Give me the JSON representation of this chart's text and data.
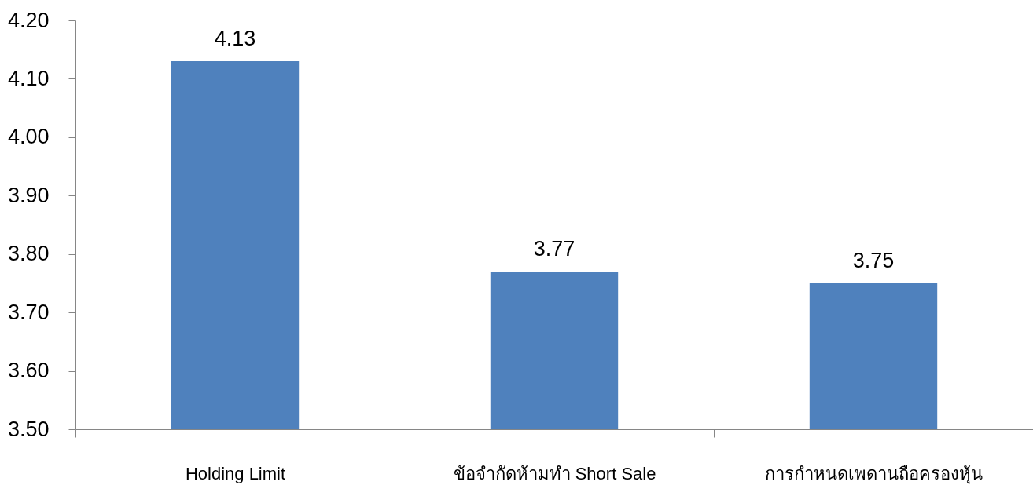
{
  "chart_data": {
    "type": "bar",
    "categories": [
      "Holding Limit",
      "ข้อจำกัดห้ามทำ Short Sale",
      "การกำหนดเพดานถือครองหุ้น"
    ],
    "values": [
      4.13,
      3.77,
      3.75
    ],
    "color": "#4f81bd",
    "ylim": [
      3.5,
      4.2
    ],
    "yticks": [
      {
        "value": 3.5,
        "label": "3.50"
      },
      {
        "value": 3.6,
        "label": "3.60"
      },
      {
        "value": 3.7,
        "label": "3.70"
      },
      {
        "value": 3.8,
        "label": "3.80"
      },
      {
        "value": 3.9,
        "label": "3.90"
      },
      {
        "value": 4.0,
        "label": "4.00"
      },
      {
        "value": 4.1,
        "label": "4.10"
      },
      {
        "value": 4.2,
        "label": "4.20"
      }
    ],
    "data_labels": true,
    "grid": false
  }
}
